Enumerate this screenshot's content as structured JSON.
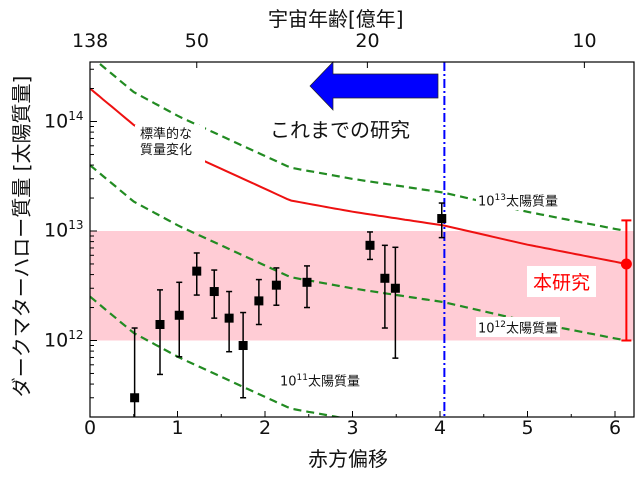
{
  "chart_data": {
    "type": "scatter",
    "xlabel": "赤方偏移",
    "ylabel": "ダークマターハロー質量 [太陽質量]",
    "top_xlabel": "宇宙年齢[億年]",
    "xlim": [
      0,
      6.22
    ],
    "ylim": [
      200000000000.0,
      350000000000000.0
    ],
    "yscale": "log",
    "grid": false,
    "x_ticks": [
      "0",
      "1",
      "2",
      "3",
      "4",
      "5",
      "6"
    ],
    "y_ticks": [
      {
        "base": "10",
        "exp": "12"
      },
      {
        "base": "10",
        "exp": "13"
      },
      {
        "base": "10",
        "exp": "14"
      }
    ],
    "top_ticks": [
      {
        "label": "138",
        "z": 0
      },
      {
        "label": "50",
        "z": 1.22
      },
      {
        "label": "20",
        "z": 3.17
      },
      {
        "label": "10",
        "z": 5.65
      }
    ],
    "shaded_band": {
      "y_range": [
        1000000000000.0,
        10000000000000.0
      ],
      "color": "#ffccd5"
    },
    "previous_studies": {
      "color": "#000000",
      "points": [
        {
          "z": 0.51,
          "m": 300000000000.0,
          "lo": 200000000000.0,
          "hi": 1300000000000.0
        },
        {
          "z": 0.8,
          "m": 1400000000000.0,
          "lo": 490000000000.0,
          "hi": 2900000000000.0
        },
        {
          "z": 1.02,
          "m": 1700000000000.0,
          "lo": 710000000000.0,
          "hi": 3400000000000.0
        },
        {
          "z": 1.22,
          "m": 4300000000000.0,
          "lo": 2600000000000.0,
          "hi": 6300000000000.0
        },
        {
          "z": 1.42,
          "m": 2800000000000.0,
          "lo": 1600000000000.0,
          "hi": 4400000000000.0
        },
        {
          "z": 1.59,
          "m": 1600000000000.0,
          "lo": 790000000000.0,
          "hi": 2800000000000.0
        },
        {
          "z": 1.75,
          "m": 900000000000.0,
          "lo": 300000000000.0,
          "hi": 1800000000000.0
        },
        {
          "z": 1.93,
          "m": 2300000000000.0,
          "lo": 1400000000000.0,
          "hi": 3600000000000.0
        },
        {
          "z": 2.13,
          "m": 3200000000000.0,
          "lo": 2100000000000.0,
          "hi": 4600000000000.0
        },
        {
          "z": 2.48,
          "m": 3400000000000.0,
          "lo": 2000000000000.0,
          "hi": 4800000000000.0
        },
        {
          "z": 3.2,
          "m": 7400000000000.0,
          "lo": 5500000000000.0,
          "hi": 9800000000000.0
        },
        {
          "z": 3.37,
          "m": 3700000000000.0,
          "lo": 1300000000000.0,
          "hi": 7400000000000.0
        },
        {
          "z": 3.49,
          "m": 3000000000000.0,
          "lo": 690000000000.0,
          "hi": 7100000000000.0
        },
        {
          "z": 4.02,
          "m": 13000000000000.0,
          "lo": 8700000000000.0,
          "hi": 18000000000000.0
        }
      ]
    },
    "this_study": {
      "label": "本研究",
      "color": "#ff0000",
      "z": 6.13,
      "m": 5000000000000.0,
      "lo": 1000000000000.0,
      "hi": 12500000000000.0
    },
    "standard_growth": {
      "label": "標準的な\n質量変化",
      "color": "#ee1111",
      "z": [
        0,
        0.5,
        1.03,
        2.29,
        3.0,
        4.05,
        5.0,
        6.13
      ],
      "m": [
        200000000000000.0,
        93000000000000.0,
        55000000000000.0,
        19000000000000.0,
        15000000000000.0,
        11200000000000.0,
        7500000000000.0,
        5000000000000.0
      ]
    },
    "tracks": [
      {
        "label": {
          "base": "10",
          "exp": "13",
          "unit": "太陽質量"
        },
        "color": "#228b22",
        "offset_dex": 0.3
      },
      {
        "label": {
          "base": "10",
          "exp": "12",
          "unit": "太陽質量"
        },
        "color": "#228b22",
        "offset_dex": -0.7
      },
      {
        "label": {
          "base": "10",
          "exp": "11",
          "unit": "太陽質量"
        },
        "color": "#228b22",
        "offset_dex": -1.9
      }
    ],
    "redshift_line": {
      "z": 4.05,
      "color": "#0000ff"
    },
    "arrow_label": "これまでの研究",
    "arrow_color": "#0000ff"
  }
}
